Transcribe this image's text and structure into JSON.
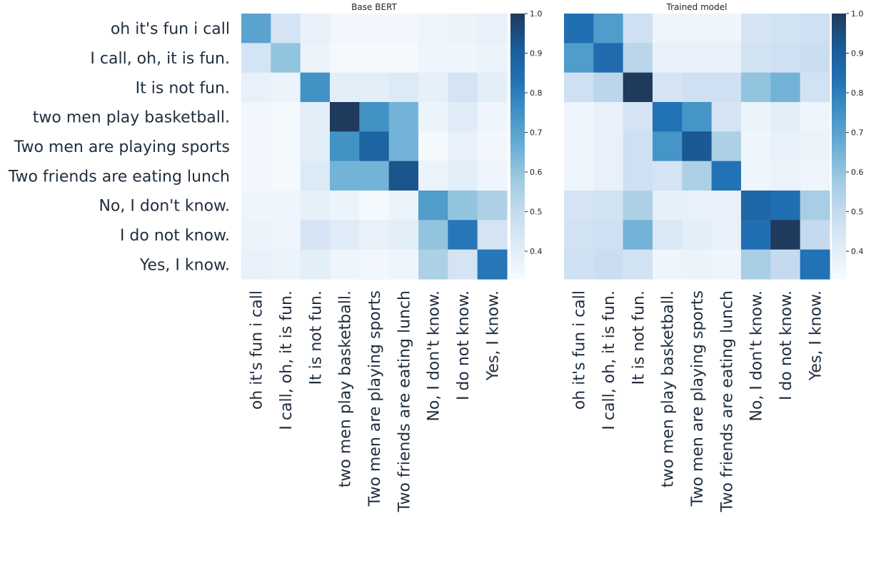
{
  "chart_data": [
    {
      "type": "heatmap",
      "title": "Base BERT",
      "row_labels": [
        "oh it's fun i call",
        "I call, oh, it is fun.",
        "It is not fun.",
        "two men play basketball.",
        "Two men are playing sports",
        "Two friends are eating lunch",
        "No, I don't know. ",
        "I do not know.",
        "Yes, I know."
      ],
      "col_labels": [
        "oh it's fun i call",
        "I call, oh, it is fun.",
        "It is not fun.",
        "two men play basketball.",
        "Two men are playing sports",
        "Two friends are eating lunch",
        "No, I don't know. ",
        "I do not know.",
        "Yes, I know."
      ],
      "matrix": [
        [
          0.7,
          0.45,
          0.38,
          0.35,
          0.35,
          0.35,
          0.36,
          0.37,
          0.38
        ],
        [
          0.45,
          0.6,
          0.37,
          0.34,
          0.34,
          0.34,
          0.36,
          0.36,
          0.37
        ],
        [
          0.38,
          0.37,
          0.75,
          0.4,
          0.4,
          0.42,
          0.39,
          0.45,
          0.4
        ],
        [
          0.35,
          0.34,
          0.4,
          1.0,
          0.75,
          0.65,
          0.37,
          0.41,
          0.36
        ],
        [
          0.35,
          0.34,
          0.4,
          0.75,
          0.88,
          0.65,
          0.34,
          0.38,
          0.35
        ],
        [
          0.35,
          0.34,
          0.42,
          0.65,
          0.65,
          0.93,
          0.37,
          0.4,
          0.36
        ],
        [
          0.36,
          0.36,
          0.39,
          0.37,
          0.34,
          0.37,
          0.72,
          0.6,
          0.55
        ],
        [
          0.37,
          0.36,
          0.45,
          0.41,
          0.38,
          0.4,
          0.6,
          0.82,
          0.45
        ],
        [
          0.38,
          0.37,
          0.4,
          0.36,
          0.35,
          0.36,
          0.55,
          0.45,
          0.82
        ]
      ],
      "colorbar": {
        "min": 0.33,
        "max": 1.0,
        "ticks": [
          0.4,
          0.5,
          0.6,
          0.7,
          0.8,
          0.9,
          1.0
        ],
        "tick_labels": [
          "0.4",
          "0.5",
          "0.6",
          "0.7",
          "0.8",
          "0.9",
          "1.0"
        ]
      },
      "colormap": "Blues"
    },
    {
      "type": "heatmap",
      "title": "Trained model",
      "row_labels": [
        "oh it's fun i call",
        "I call, oh, it is fun.",
        "It is not fun.",
        "two men play basketball.",
        "Two men are playing sports",
        "Two friends are eating lunch",
        "No, I don't know. ",
        "I do not know.",
        "Yes, I know."
      ],
      "col_labels": [
        "oh it's fun i call",
        "I call, oh, it is fun.",
        "It is not fun.",
        "two men play basketball.",
        "Two men are playing sports",
        "Two friends are eating lunch",
        "No, I don't know. ",
        "I do not know.",
        "Yes, I know."
      ],
      "matrix": [
        [
          0.84,
          0.72,
          0.47,
          0.36,
          0.36,
          0.36,
          0.45,
          0.46,
          0.47
        ],
        [
          0.72,
          0.85,
          0.52,
          0.38,
          0.38,
          0.38,
          0.46,
          0.47,
          0.48
        ],
        [
          0.47,
          0.52,
          1.0,
          0.45,
          0.47,
          0.47,
          0.6,
          0.65,
          0.46
        ],
        [
          0.36,
          0.38,
          0.45,
          0.83,
          0.74,
          0.45,
          0.37,
          0.4,
          0.36
        ],
        [
          0.36,
          0.38,
          0.47,
          0.74,
          0.92,
          0.55,
          0.36,
          0.38,
          0.37
        ],
        [
          0.36,
          0.38,
          0.47,
          0.45,
          0.55,
          0.83,
          0.36,
          0.37,
          0.36
        ],
        [
          0.45,
          0.46,
          0.55,
          0.39,
          0.38,
          0.38,
          0.87,
          0.84,
          0.56
        ],
        [
          0.46,
          0.47,
          0.65,
          0.43,
          0.4,
          0.38,
          0.84,
          1.0,
          0.5
        ],
        [
          0.47,
          0.48,
          0.46,
          0.36,
          0.37,
          0.36,
          0.56,
          0.5,
          0.83
        ]
      ],
      "colorbar": {
        "min": 0.33,
        "max": 1.0,
        "ticks": [
          0.4,
          0.5,
          0.6,
          0.7,
          0.8,
          0.9,
          1.0
        ],
        "tick_labels": [
          "0.4",
          "0.5",
          "0.6",
          "0.7",
          "0.8",
          "0.9",
          "1.0"
        ]
      },
      "colormap": "Blues"
    }
  ]
}
